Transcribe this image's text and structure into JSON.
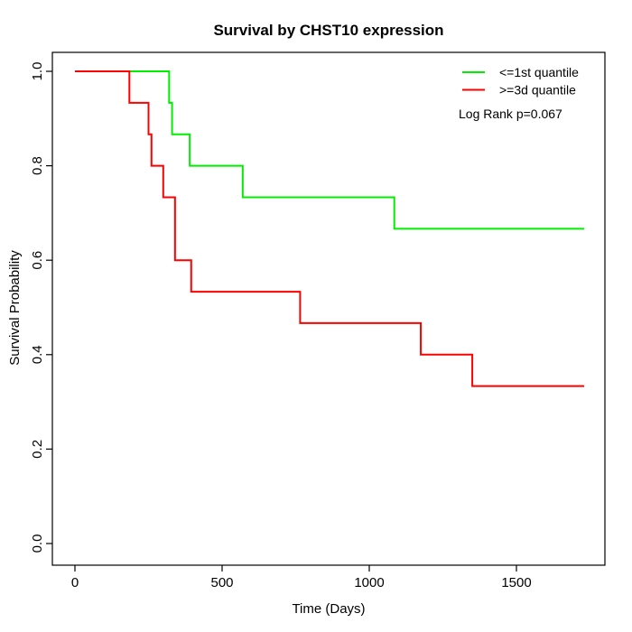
{
  "chart_data": {
    "type": "line",
    "subtype": "kaplan-meier-step",
    "title": "Survival by CHST10 expression",
    "xlabel": "Time (Days)",
    "ylabel": "Survival Probability",
    "xlim": [
      0,
      1790
    ],
    "ylim": [
      0.0,
      1.0
    ],
    "grid": false,
    "legend_position": "top-right",
    "annotation": "Log Rank p=0.067",
    "x_ticks": [
      {
        "value": 0,
        "label": "0"
      },
      {
        "value": 500,
        "label": "500"
      },
      {
        "value": 1000,
        "label": "1000"
      },
      {
        "value": 1500,
        "label": "1500"
      }
    ],
    "y_ticks": [
      {
        "value": 0.0,
        "label": "0.0"
      },
      {
        "value": 0.2,
        "label": "0.2"
      },
      {
        "value": 0.4,
        "label": "0.4"
      },
      {
        "value": 0.6,
        "label": "0.6"
      },
      {
        "value": 0.8,
        "label": "0.8"
      },
      {
        "value": 1.0,
        "label": "1.0"
      }
    ],
    "series": [
      {
        "name": "<=1st quantile",
        "color": "#00ee00",
        "steps": [
          [
            0,
            1.0
          ],
          [
            320,
            0.9333
          ],
          [
            330,
            0.8667
          ],
          [
            390,
            0.8
          ],
          [
            570,
            0.7333
          ],
          [
            1085,
            0.6667
          ]
        ],
        "end_time": 1730,
        "final_survival": 0.6667
      },
      {
        "name": ">=3d quantile",
        "color": "#ff0000",
        "steps": [
          [
            0,
            1.0
          ],
          [
            185,
            0.9333
          ],
          [
            250,
            0.8667
          ],
          [
            260,
            0.8
          ],
          [
            300,
            0.7333
          ],
          [
            340,
            0.6
          ],
          [
            395,
            0.5333
          ],
          [
            765,
            0.4667
          ],
          [
            1175,
            0.4
          ],
          [
            1350,
            0.3333
          ]
        ],
        "end_time": 1730,
        "final_survival": 0.3333
      }
    ],
    "axis_color": "#000000",
    "background_color": "#ffffff"
  }
}
